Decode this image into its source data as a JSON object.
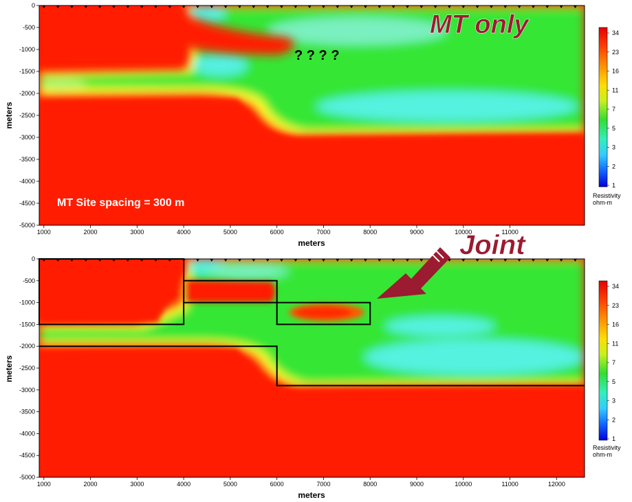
{
  "chart_data": [
    {
      "type": "heatmap",
      "panel": "top",
      "title": "MT only",
      "xlabel": "meters",
      "ylabel": "meters",
      "xlim": [
        900,
        12600
      ],
      "ylim": [
        -5000,
        0
      ],
      "x_ticks": [
        "1000",
        "2000",
        "3000",
        "4000",
        "5000",
        "6000",
        "7000",
        "8000",
        "9000",
        "10000",
        "11000"
      ],
      "y_ticks": [
        "0",
        "-500",
        "-1000",
        "-1500",
        "-2000",
        "-2500",
        "-3000",
        "-3500",
        "-4000",
        "-4500",
        "-5000"
      ],
      "annotations": [
        "? ? ? ?",
        "MT Site spacing = 300 m"
      ],
      "colorbar": {
        "title": "Resistivity",
        "units": "ohm-m",
        "ticks": [
          "34",
          "23",
          "16",
          "11",
          "7",
          "5",
          "3",
          "2",
          "1"
        ]
      },
      "overlay": []
    },
    {
      "type": "heatmap",
      "panel": "bottom",
      "title": "Joint",
      "xlabel": "meters",
      "ylabel": "meters",
      "xlim": [
        900,
        12600
      ],
      "ylim": [
        -5000,
        0
      ],
      "x_ticks": [
        "1000",
        "2000",
        "3000",
        "4000",
        "5000",
        "6000",
        "7000",
        "8000",
        "9000",
        "10000",
        "11000",
        "12000"
      ],
      "y_ticks": [
        "0",
        "-500",
        "-1000",
        "-1500",
        "-2000",
        "-2500",
        "-3000",
        "-3500",
        "-4000",
        "-4500",
        "-5000"
      ],
      "annotations": [],
      "colorbar": {
        "title": "Resistivity",
        "units": "ohm-m",
        "ticks": [
          "34",
          "23",
          "16",
          "11",
          "7",
          "5",
          "3",
          "2",
          "1"
        ]
      },
      "overlay": [
        {
          "name": "upper-left-body",
          "points": [
            [
              900,
              0
            ],
            [
              4000,
              0
            ],
            [
              4000,
              -1500
            ],
            [
              900,
              -1500
            ]
          ]
        },
        {
          "name": "middle-body",
          "points": [
            [
              4000,
              -500
            ],
            [
              6000,
              -500
            ],
            [
              6000,
              -1000
            ],
            [
              4000,
              -1000
            ]
          ]
        },
        {
          "name": "right-body",
          "points": [
            [
              6000,
              -1000
            ],
            [
              8000,
              -1000
            ],
            [
              8000,
              -1500
            ],
            [
              6000,
              -1500
            ]
          ]
        },
        {
          "name": "basement",
          "points": [
            [
              900,
              -2000
            ],
            [
              6000,
              -2000
            ],
            [
              6000,
              -2900
            ],
            [
              12600,
              -2900
            ]
          ]
        }
      ]
    }
  ],
  "colors": {
    "red": "#ff0000",
    "orange": "#ff8c00",
    "yellow": "#ffff33",
    "green": "#33ee33",
    "cyan": "#55f2e0",
    "blue": "#0000ff",
    "label_maroon": "#9b1b30"
  }
}
